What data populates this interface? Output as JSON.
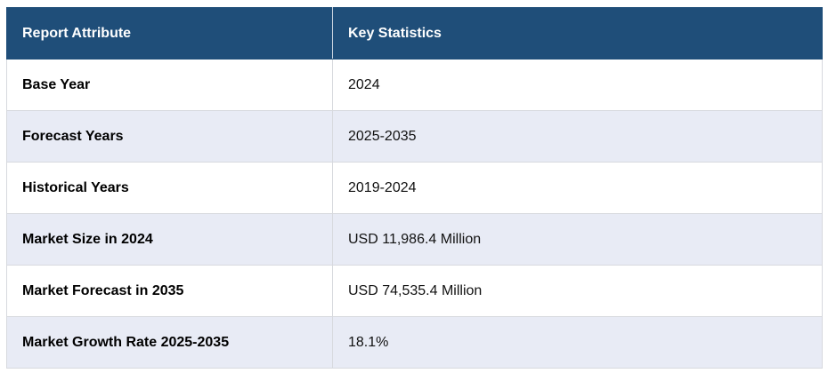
{
  "table": {
    "headers": [
      "Report Attribute",
      "Key Statistics"
    ],
    "rows": [
      {
        "attribute": "Base Year",
        "value": "2024"
      },
      {
        "attribute": "Forecast Years",
        "value": "2025-2035"
      },
      {
        "attribute": "Historical Years",
        "value": "2019-2024"
      },
      {
        "attribute": "Market Size in 2024",
        "value": "USD 11,986.4 Million"
      },
      {
        "attribute": "Market Forecast in 2035",
        "value": "USD 74,535.4 Million"
      },
      {
        "attribute": "Market Growth Rate 2025-2035",
        "value": "18.1%"
      }
    ]
  },
  "colors": {
    "header_bg": "#1f4e79",
    "header_text": "#ffffff",
    "stripe_bg": "#e8ebf5",
    "border": "#d7d9de"
  }
}
